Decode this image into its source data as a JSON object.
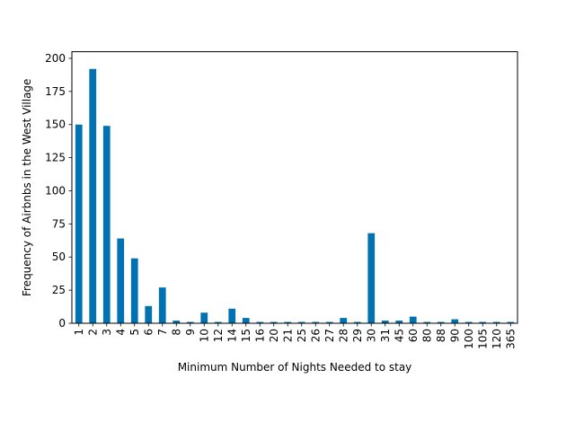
{
  "chart_data": {
    "type": "bar",
    "xlabel": "Minimum Number of Nights Needed to stay",
    "ylabel": "Frequency of Airbnbs in the West Village",
    "ylim": [
      0,
      205
    ],
    "yticks": [
      0,
      25,
      50,
      75,
      100,
      125,
      150,
      175,
      200
    ],
    "grid": false,
    "bar_color": "#0072b2",
    "categories": [
      "1",
      "2",
      "3",
      "4",
      "5",
      "6",
      "7",
      "8",
      "9",
      "10",
      "12",
      "14",
      "15",
      "16",
      "20",
      "21",
      "25",
      "26",
      "27",
      "28",
      "29",
      "30",
      "31",
      "45",
      "60",
      "80",
      "88",
      "90",
      "100",
      "105",
      "120",
      "365"
    ],
    "values": [
      150,
      192,
      149,
      64,
      49,
      13,
      27,
      2,
      1,
      8,
      1,
      11,
      4,
      1,
      1,
      1,
      1,
      1,
      1,
      4,
      1,
      68,
      2,
      2,
      5,
      1,
      1,
      3,
      1,
      1,
      1,
      1
    ]
  }
}
